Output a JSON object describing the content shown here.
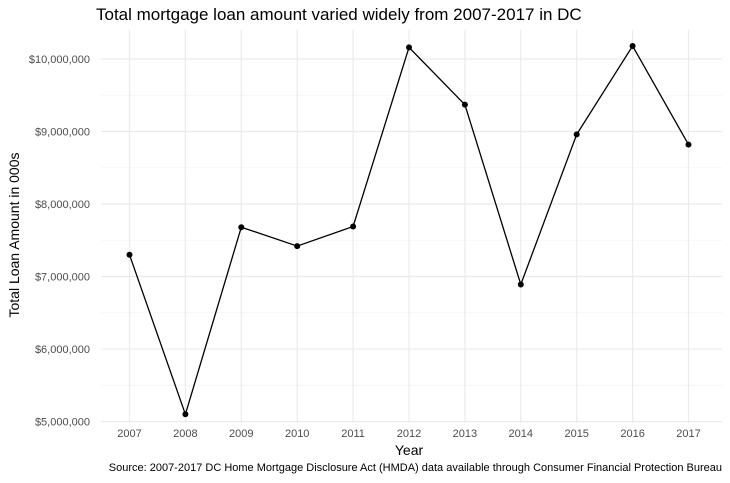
{
  "chart_data": {
    "type": "line",
    "title": "Total mortgage loan amount varied widely from 2007-2017 in DC",
    "xlabel": "Year",
    "ylabel": "Total Loan Amount in 000s",
    "caption": "Source: 2007-2017 DC Home Mortgage Disclosure Act (HMDA) data available through Consumer Financial Protection Bureau",
    "categories": [
      "2007",
      "2008",
      "2009",
      "2010",
      "2011",
      "2012",
      "2013",
      "2014",
      "2015",
      "2016",
      "2017"
    ],
    "series": [
      {
        "values": [
          7300000,
          5100000,
          7680000,
          7420000,
          7690000,
          10160000,
          9370000,
          6890000,
          8960000,
          10180000,
          8820000
        ]
      }
    ],
    "yticks": [
      5000000,
      6000000,
      7000000,
      8000000,
      9000000,
      10000000
    ],
    "ytick_labels": [
      "$5,000,000",
      "$6,000,000",
      "$7,000,000",
      "$8,000,000",
      "$9,000,000",
      "$10,000,000"
    ],
    "ylim": [
      4980000,
      10400000
    ],
    "grid": true,
    "line_color": "#000000",
    "grid_color": "#ebebeb"
  }
}
